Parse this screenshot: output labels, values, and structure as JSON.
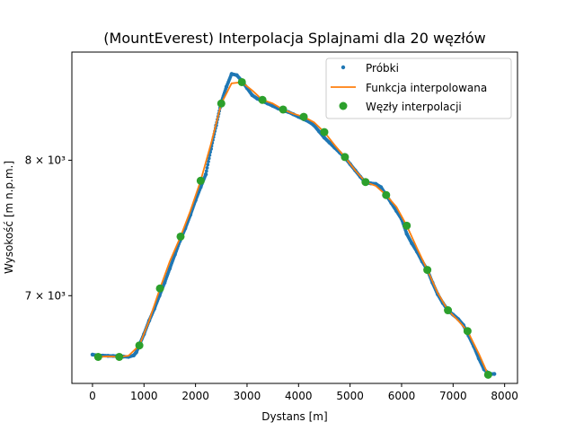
{
  "chart_data": {
    "type": "line",
    "title": "(MountEverest) Interpolacja Splajnami dla 20 węzłów",
    "xlabel": "Dystans [m]",
    "ylabel": "Wysokość [m n.p.m.]",
    "xlim": [
      -400,
      8250
    ],
    "ylim": [
      6420,
      8900
    ],
    "y_scale": "log",
    "x_ticks": [
      0,
      1000,
      2000,
      3000,
      4000,
      5000,
      6000,
      7000,
      8000
    ],
    "x_tick_labels": [
      "0",
      "1000",
      "2000",
      "3000",
      "4000",
      "5000",
      "6000",
      "7000",
      "8000"
    ],
    "y_ticks": [
      7000,
      8000
    ],
    "y_tick_labels": [
      "7 × 10³",
      "8 × 10³"
    ],
    "legend_position": "top-right",
    "colors": {
      "probki": "#1f77b4",
      "funkcja": "#ff7f0e",
      "wezly": "#2ca02c"
    },
    "series": [
      {
        "name": "Próbki",
        "marker": "dot",
        "x": [
          0,
          100,
          200,
          300,
          400,
          500,
          600,
          700,
          800,
          850,
          900,
          1000,
          1100,
          1200,
          1300,
          1400,
          1500,
          1600,
          1700,
          1800,
          1900,
          2000,
          2100,
          2200,
          2300,
          2400,
          2500,
          2600,
          2700,
          2800,
          2900,
          3000,
          3100,
          3200,
          3300,
          3400,
          3500,
          3600,
          3700,
          3800,
          3900,
          4000,
          4100,
          4200,
          4300,
          4400,
          4500,
          4600,
          4700,
          4800,
          4900,
          5000,
          5100,
          5200,
          5300,
          5400,
          5500,
          5600,
          5700,
          5800,
          5900,
          6000,
          6100,
          6200,
          6300,
          6400,
          6500,
          6600,
          6700,
          6800,
          6900,
          7000,
          7100,
          7200,
          7300,
          7400,
          7500,
          7600,
          7700,
          7800
        ],
        "y": [
          6605,
          6600,
          6598,
          6597,
          6596,
          6594,
          6592,
          6590,
          6600,
          6620,
          6660,
          6740,
          6830,
          6910,
          7000,
          7090,
          7190,
          7290,
          7390,
          7480,
          7580,
          7690,
          7790,
          7890,
          8090,
          8280,
          8470,
          8600,
          8710,
          8700,
          8650,
          8590,
          8530,
          8500,
          8480,
          8460,
          8440,
          8420,
          8400,
          8390,
          8370,
          8350,
          8330,
          8310,
          8280,
          8230,
          8180,
          8140,
          8100,
          8060,
          8020,
          7970,
          7920,
          7870,
          7825,
          7820,
          7815,
          7790,
          7730,
          7670,
          7610,
          7550,
          7440,
          7370,
          7310,
          7240,
          7180,
          7090,
          7010,
          6950,
          6900,
          6870,
          6840,
          6800,
          6730,
          6660,
          6580,
          6510,
          6480,
          6480
        ]
      },
      {
        "name": "Funkcja interpolowana",
        "marker": "line",
        "x": [
          110,
          300,
          520,
          700,
          910,
          1100,
          1310,
          1500,
          1710,
          1900,
          2100,
          2300,
          2500,
          2700,
          2900,
          3100,
          3300,
          3500,
          3700,
          3900,
          4100,
          4300,
          4500,
          4700,
          4900,
          5100,
          5300,
          5500,
          5700,
          5900,
          6100,
          6300,
          6500,
          6700,
          6900,
          7100,
          7280,
          7500,
          7680
        ],
        "y": [
          6590,
          6593,
          6590,
          6598,
          6665,
          6830,
          7050,
          7240,
          7420,
          7610,
          7840,
          8130,
          8460,
          8630,
          8640,
          8570,
          8490,
          8460,
          8410,
          8375,
          8350,
          8305,
          8225,
          8120,
          8025,
          7920,
          7830,
          7800,
          7730,
          7640,
          7500,
          7335,
          7180,
          7020,
          6900,
          6830,
          6760,
          6610,
          6475
        ]
      },
      {
        "name": "Węzły interpolacji",
        "marker": "circle",
        "x": [
          110,
          520,
          910,
          1310,
          1710,
          2100,
          2500,
          2900,
          3300,
          3700,
          4100,
          4500,
          4900,
          5300,
          5700,
          6100,
          6500,
          6900,
          7280,
          7680
        ],
        "y": [
          6590,
          6590,
          6665,
          7050,
          7420,
          7840,
          8460,
          8640,
          8490,
          8410,
          8350,
          8225,
          8025,
          7830,
          7730,
          7500,
          7180,
          6900,
          6760,
          6475
        ]
      }
    ]
  }
}
